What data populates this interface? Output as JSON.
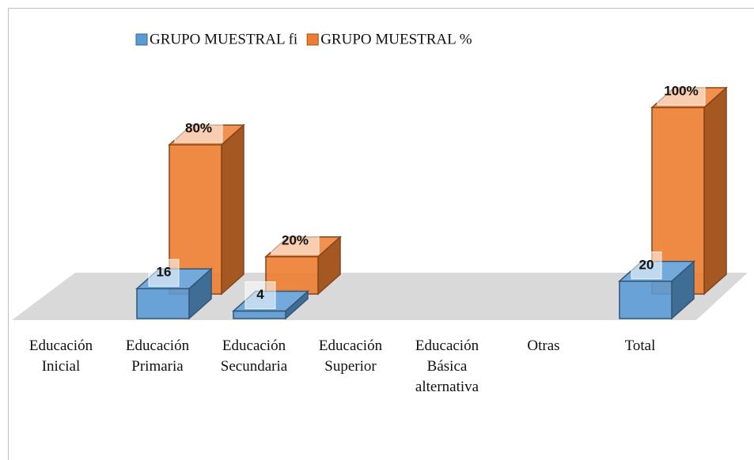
{
  "chart_data": {
    "type": "bar3d",
    "categories": [
      "Educación Inicial",
      "Educación Primaria",
      "Educación Secundaria",
      "Educación Superior",
      "Educación Básica alternativa",
      "Otras",
      "Total"
    ],
    "series": [
      {
        "name": "GRUPO MUESTRAL fi",
        "color": "#5b9bd5",
        "values": [
          null,
          16,
          4,
          null,
          null,
          null,
          20
        ]
      },
      {
        "name": "GRUPO MUESTRAL %",
        "color": "#ed7d31",
        "values": [
          null,
          80,
          20,
          null,
          null,
          null,
          100
        ],
        "value_labels": [
          null,
          "80%",
          "20%",
          null,
          null,
          null,
          "100%"
        ]
      }
    ]
  }
}
